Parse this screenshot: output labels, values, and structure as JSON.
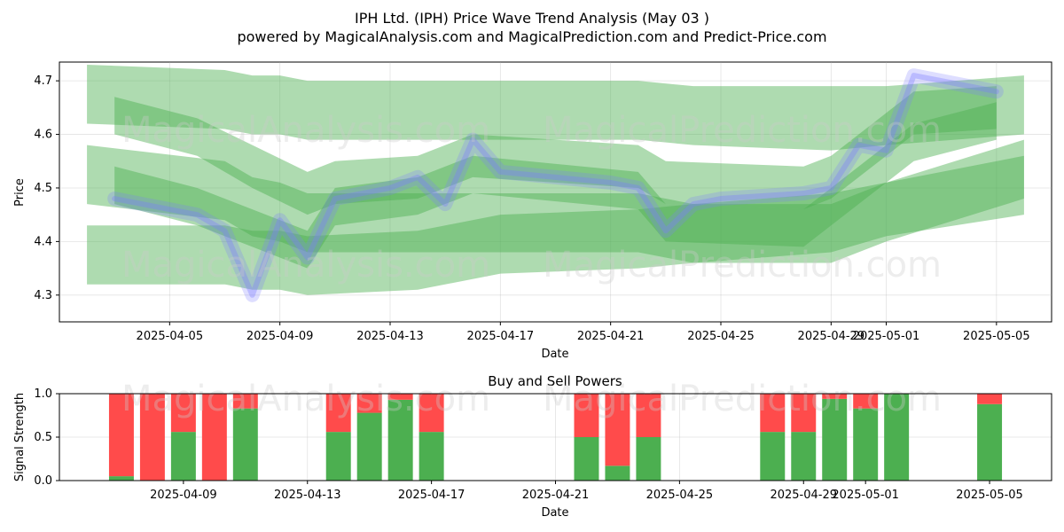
{
  "header": {
    "title_line1": "IPH Ltd. (IPH) Price Wave Trend Analysis (May 03 )",
    "title_line2": "powered by MagicalAnalysis.com and MagicalPrediction.com and Predict-Price.com"
  },
  "watermarks": {
    "left": "MagicalAnalysis.com",
    "right": "MagicalPrediction.com"
  },
  "colors": {
    "band_green": "#4caf50",
    "price_blue": "#7b7bff",
    "buy_green": "#4caf50",
    "sell_red": "#ff4b4b"
  },
  "chart_data": [
    {
      "type": "area",
      "title": "",
      "xlabel": "Date",
      "ylabel": "Price",
      "x_ticks": [
        "2025-04-05",
        "2025-04-09",
        "2025-04-13",
        "2025-04-17",
        "2025-04-21",
        "2025-04-25",
        "2025-04-29",
        "2025-05-01",
        "2025-05-05"
      ],
      "y_ticks": [
        "4.3",
        "4.4",
        "4.5",
        "4.6",
        "4.7"
      ],
      "xlim": [
        "2025-04-01",
        "2025-05-07"
      ],
      "ylim": [
        4.25,
        4.735
      ],
      "grid": true,
      "price_series": {
        "x": [
          "2025-04-03",
          "2025-04-06",
          "2025-04-07",
          "2025-04-08",
          "2025-04-09",
          "2025-04-10",
          "2025-04-11",
          "2025-04-13",
          "2025-04-14",
          "2025-04-15",
          "2025-04-16",
          "2025-04-17",
          "2025-04-21",
          "2025-04-22",
          "2025-04-23",
          "2025-04-24",
          "2025-04-25",
          "2025-04-28",
          "2025-04-29",
          "2025-04-30",
          "2025-05-01",
          "2025-05-02",
          "2025-05-05"
        ],
        "values": [
          4.48,
          4.45,
          4.42,
          4.3,
          4.44,
          4.37,
          4.48,
          4.5,
          4.52,
          4.47,
          4.59,
          4.53,
          4.51,
          4.5,
          4.42,
          4.47,
          4.48,
          4.49,
          4.5,
          4.58,
          4.57,
          4.71,
          4.68
        ]
      },
      "bands": [
        {
          "x": [
            "2025-04-02",
            "2025-04-07",
            "2025-04-08",
            "2025-04-09",
            "2025-04-10",
            "2025-04-14",
            "2025-04-17",
            "2025-04-22",
            "2025-04-24",
            "2025-04-29",
            "2025-05-01",
            "2025-05-06"
          ],
          "upper": [
            4.73,
            4.72,
            4.71,
            4.71,
            4.7,
            4.7,
            4.7,
            4.7,
            4.69,
            4.69,
            4.69,
            4.71
          ],
          "lower": [
            4.62,
            4.61,
            4.6,
            4.6,
            4.59,
            4.59,
            4.59,
            4.59,
            4.58,
            4.57,
            4.58,
            4.6
          ]
        },
        {
          "x": [
            "2025-04-02",
            "2025-04-07",
            "2025-04-08",
            "2025-04-09",
            "2025-04-10",
            "2025-04-14",
            "2025-04-17",
            "2025-04-22",
            "2025-04-24",
            "2025-04-29",
            "2025-05-01",
            "2025-05-06"
          ],
          "upper": [
            4.58,
            4.55,
            4.52,
            4.51,
            4.49,
            4.49,
            4.49,
            4.49,
            4.47,
            4.47,
            4.51,
            4.59
          ],
          "lower": [
            4.47,
            4.44,
            4.41,
            4.4,
            4.38,
            4.38,
            4.38,
            4.38,
            4.36,
            4.36,
            4.4,
            4.48
          ]
        },
        {
          "x": [
            "2025-04-02",
            "2025-04-07",
            "2025-04-08",
            "2025-04-09",
            "2025-04-10",
            "2025-04-14",
            "2025-04-17",
            "2025-04-22",
            "2025-04-24",
            "2025-04-29",
            "2025-05-01",
            "2025-05-06"
          ],
          "upper": [
            4.43,
            4.43,
            4.42,
            4.42,
            4.41,
            4.42,
            4.45,
            4.46,
            4.47,
            4.49,
            4.51,
            4.56
          ],
          "lower": [
            4.32,
            4.32,
            4.31,
            4.31,
            4.3,
            4.31,
            4.34,
            4.35,
            4.36,
            4.38,
            4.41,
            4.45
          ]
        },
        {
          "x": [
            "2025-04-03",
            "2025-04-06",
            "2025-04-08",
            "2025-04-10",
            "2025-04-11",
            "2025-04-14",
            "2025-04-16",
            "2025-04-22",
            "2025-04-23",
            "2025-04-28",
            "2025-04-29",
            "2025-05-02",
            "2025-05-05"
          ],
          "upper": [
            4.67,
            4.63,
            4.58,
            4.53,
            4.55,
            4.56,
            4.6,
            4.58,
            4.55,
            4.54,
            4.56,
            4.68,
            4.69
          ],
          "lower": [
            4.6,
            4.56,
            4.5,
            4.45,
            4.47,
            4.48,
            4.52,
            4.5,
            4.47,
            4.46,
            4.48,
            4.6,
            4.61
          ]
        },
        {
          "x": [
            "2025-04-03",
            "2025-04-06",
            "2025-04-08",
            "2025-04-10",
            "2025-04-11",
            "2025-04-14",
            "2025-04-16",
            "2025-04-22",
            "2025-04-23",
            "2025-04-28",
            "2025-04-29",
            "2025-05-02",
            "2025-05-05"
          ],
          "upper": [
            4.54,
            4.5,
            4.46,
            4.42,
            4.5,
            4.52,
            4.56,
            4.53,
            4.47,
            4.46,
            4.5,
            4.62,
            4.66
          ],
          "lower": [
            4.47,
            4.43,
            4.39,
            4.35,
            4.43,
            4.45,
            4.49,
            4.46,
            4.4,
            4.39,
            4.43,
            4.55,
            4.59
          ]
        }
      ]
    },
    {
      "type": "bar",
      "title": "Buy and Sell Powers",
      "xlabel": "Date",
      "ylabel": "Signal Strength",
      "x_ticks": [
        "2025-04-09",
        "2025-04-13",
        "2025-04-17",
        "2025-04-21",
        "2025-04-25",
        "2025-04-29",
        "2025-05-01",
        "2025-05-05"
      ],
      "y_ticks": [
        "0.0",
        "0.5",
        "1.0"
      ],
      "xlim": [
        "2025-04-05",
        "2025-05-07"
      ],
      "ylim": [
        0,
        1
      ],
      "grid": true,
      "categories": [
        "2025-04-07",
        "2025-04-08",
        "2025-04-09",
        "2025-04-10",
        "2025-04-11",
        "2025-04-14",
        "2025-04-15",
        "2025-04-16",
        "2025-04-17",
        "2025-04-22",
        "2025-04-23",
        "2025-04-24",
        "2025-04-28",
        "2025-04-29",
        "2025-04-30",
        "2025-05-01",
        "2025-05-02",
        "2025-05-05"
      ],
      "series": [
        {
          "name": "Buy",
          "values": [
            0.05,
            0.0,
            0.56,
            0.0,
            0.83,
            0.56,
            0.78,
            0.93,
            0.56,
            0.5,
            0.17,
            0.5,
            0.56,
            0.56,
            0.94,
            0.83,
            1.0,
            0.88
          ]
        },
        {
          "name": "Sell",
          "values": [
            0.95,
            1.0,
            0.44,
            1.0,
            0.17,
            0.44,
            0.22,
            0.07,
            0.44,
            0.5,
            0.83,
            0.5,
            0.44,
            0.44,
            0.06,
            0.17,
            0.0,
            0.12
          ]
        }
      ]
    }
  ]
}
